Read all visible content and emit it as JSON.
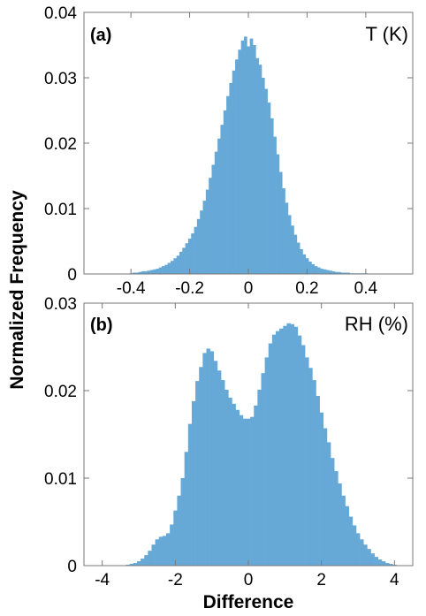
{
  "figure": {
    "ylabel": "Normalized Frequency",
    "xlabel": "Difference",
    "bar_color": "#66a9d7"
  },
  "chart_data": [
    {
      "type": "bar",
      "panel_label": "(a)",
      "variable_label": "T (K)",
      "xlim": [
        -0.56,
        0.56
      ],
      "ylim": [
        0,
        0.04
      ],
      "xticks": [
        -0.4,
        -0.2,
        0,
        0.2,
        0.4
      ],
      "xtick_labels": [
        "-0.4",
        "-0.2",
        "0",
        "0.2",
        "0.4"
      ],
      "yticks": [
        0,
        0.01,
        0.02,
        0.03,
        0.04
      ],
      "ytick_labels": [
        "0",
        "0.01",
        "0.02",
        "0.03",
        "0.04"
      ],
      "bin_width": 0.01,
      "x": [
        -0.4,
        -0.39,
        -0.38,
        -0.37,
        -0.36,
        -0.35,
        -0.34,
        -0.33,
        -0.32,
        -0.31,
        -0.3,
        -0.29,
        -0.28,
        -0.27,
        -0.26,
        -0.25,
        -0.24,
        -0.23,
        -0.22,
        -0.21,
        -0.2,
        -0.19,
        -0.18,
        -0.17,
        -0.16,
        -0.15,
        -0.14,
        -0.13,
        -0.12,
        -0.11,
        -0.1,
        -0.09,
        -0.08,
        -0.07,
        -0.06,
        -0.05,
        -0.04,
        -0.03,
        -0.02,
        -0.01,
        0,
        0.01,
        0.02,
        0.03,
        0.04,
        0.05,
        0.06,
        0.07,
        0.08,
        0.09,
        0.1,
        0.11,
        0.12,
        0.13,
        0.14,
        0.15,
        0.16,
        0.17,
        0.18,
        0.19,
        0.2,
        0.21,
        0.22,
        0.23,
        0.24,
        0.25,
        0.26,
        0.27,
        0.28,
        0.29,
        0.3,
        0.31,
        0.32,
        0.33,
        0.34,
        0.35,
        0.36,
        0.37,
        0.38,
        0.39,
        0.4
      ],
      "values": [
        0.0001,
        0.0002,
        0.0002,
        0.0003,
        0.0004,
        0.0004,
        0.0005,
        0.0006,
        0.0007,
        0.0008,
        0.001,
        0.0012,
        0.0014,
        0.0017,
        0.002,
        0.0024,
        0.0028,
        0.0034,
        0.004,
        0.0047,
        0.0054,
        0.0062,
        0.0072,
        0.0084,
        0.0097,
        0.0112,
        0.0129,
        0.0147,
        0.0167,
        0.0187,
        0.0207,
        0.0228,
        0.025,
        0.0272,
        0.0292,
        0.0311,
        0.0328,
        0.0343,
        0.0357,
        0.0363,
        0.0348,
        0.036,
        0.035,
        0.033,
        0.032,
        0.03,
        0.0283,
        0.0262,
        0.0238,
        0.021,
        0.0183,
        0.0156,
        0.0131,
        0.0109,
        0.009,
        0.0074,
        0.006,
        0.0048,
        0.0038,
        0.003,
        0.0024,
        0.0019,
        0.0015,
        0.0012,
        0.001,
        0.0008,
        0.0007,
        0.0006,
        0.0005,
        0.0004,
        0.0003,
        0.0003,
        0.0002,
        0.0002,
        0.0002,
        0.0001,
        0.0001,
        0.0001,
        0.0001,
        0.0001,
        0.0001
      ]
    },
    {
      "type": "bar",
      "panel_label": "(b)",
      "variable_label": "RH (%)",
      "xlim": [
        -4.5,
        4.5
      ],
      "ylim": [
        0,
        0.03
      ],
      "xticks": [
        -4,
        -2,
        0,
        2,
        4
      ],
      "xtick_labels": [
        "-4",
        "-2",
        "0",
        "2",
        "4"
      ],
      "yticks": [
        0,
        0.01,
        0.02,
        0.03
      ],
      "ytick_labels": [
        "0",
        "0.01",
        "0.02",
        "0.03"
      ],
      "bin_width": 0.1,
      "x": [
        -3.3,
        -3.2,
        -3.1,
        -3.0,
        -2.9,
        -2.8,
        -2.7,
        -2.6,
        -2.5,
        -2.4,
        -2.3,
        -2.2,
        -2.1,
        -2.0,
        -1.9,
        -1.8,
        -1.7,
        -1.6,
        -1.5,
        -1.4,
        -1.3,
        -1.2,
        -1.1,
        -1.0,
        -0.9,
        -0.8,
        -0.7,
        -0.6,
        -0.5,
        -0.4,
        -0.3,
        -0.2,
        -0.1,
        0.0,
        0.1,
        0.2,
        0.3,
        0.4,
        0.5,
        0.6,
        0.7,
        0.8,
        0.9,
        1.0,
        1.1,
        1.2,
        1.3,
        1.4,
        1.5,
        1.6,
        1.7,
        1.8,
        1.9,
        2.0,
        2.1,
        2.2,
        2.3,
        2.4,
        2.5,
        2.6,
        2.7,
        2.8,
        2.9,
        3.0,
        3.1,
        3.2,
        3.3,
        3.4,
        3.5,
        3.6,
        3.7,
        3.8,
        3.9,
        4.0
      ],
      "values": [
        0.0001,
        0.0002,
        0.0003,
        0.0005,
        0.0008,
        0.0012,
        0.0017,
        0.0024,
        0.003,
        0.0033,
        0.0034,
        0.0037,
        0.0047,
        0.0063,
        0.008,
        0.01,
        0.013,
        0.0162,
        0.0188,
        0.0211,
        0.0227,
        0.0243,
        0.0248,
        0.0245,
        0.0234,
        0.0223,
        0.0212,
        0.0201,
        0.0192,
        0.0185,
        0.0178,
        0.0172,
        0.0168,
        0.0168,
        0.017,
        0.0183,
        0.0201,
        0.022,
        0.0238,
        0.0254,
        0.0264,
        0.0268,
        0.0271,
        0.0274,
        0.0277,
        0.0276,
        0.0273,
        0.0263,
        0.0252,
        0.0238,
        0.0226,
        0.0212,
        0.0194,
        0.0175,
        0.0157,
        0.0141,
        0.0123,
        0.0108,
        0.0094,
        0.008,
        0.0068,
        0.0056,
        0.0046,
        0.0037,
        0.003,
        0.0024,
        0.0019,
        0.0014,
        0.001,
        0.0007,
        0.0005,
        0.0003,
        0.0002,
        0.0001
      ]
    }
  ]
}
